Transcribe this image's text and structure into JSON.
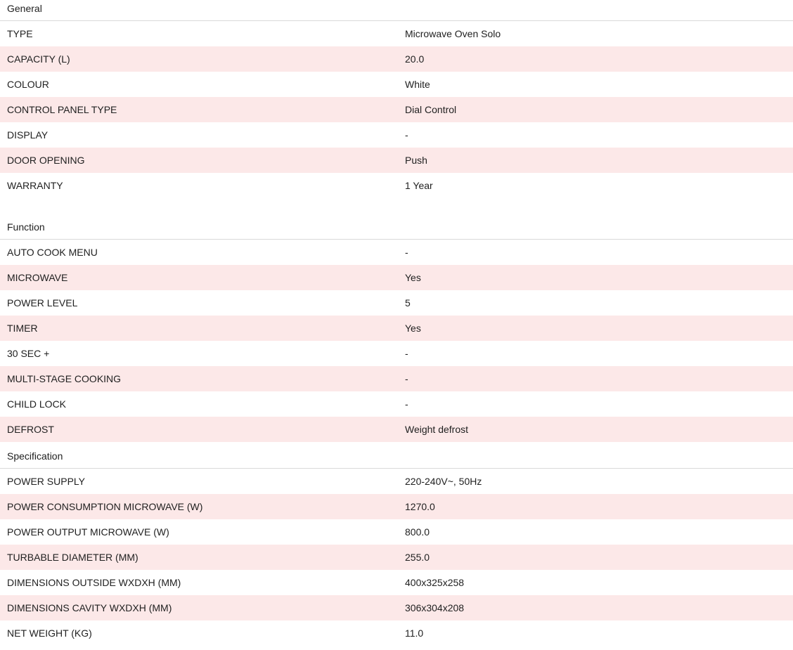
{
  "colors": {
    "stripe_pink": "#fce8e8",
    "header_rule_gray": "#d9d9d9",
    "text": "#212121",
    "background": "#ffffff"
  },
  "sections": [
    {
      "title": "General",
      "rows": [
        {
          "label": "TYPE",
          "value": "Microwave Oven Solo"
        },
        {
          "label": "CAPACITY (L)",
          "value": "20.0"
        },
        {
          "label": "COLOUR",
          "value": "White"
        },
        {
          "label": "CONTROL PANEL TYPE",
          "value": "Dial Control"
        },
        {
          "label": "DISPLAY",
          "value": "-"
        },
        {
          "label": "DOOR OPENING",
          "value": "Push"
        },
        {
          "label": "WARRANTY",
          "value": "1 Year"
        }
      ]
    },
    {
      "title": "Function",
      "rows": [
        {
          "label": "AUTO COOK MENU",
          "value": "-"
        },
        {
          "label": "MICROWAVE",
          "value": "Yes"
        },
        {
          "label": "POWER LEVEL",
          "value": "5"
        },
        {
          "label": "TIMER",
          "value": "Yes"
        },
        {
          "label": "30 SEC +",
          "value": "-"
        },
        {
          "label": "MULTI-STAGE COOKING",
          "value": "-"
        },
        {
          "label": "CHILD LOCK",
          "value": "-"
        },
        {
          "label": "DEFROST",
          "value": "Weight defrost"
        }
      ]
    },
    {
      "title": "Specification",
      "rows": [
        {
          "label": "POWER SUPPLY",
          "value": "220-240V~, 50Hz"
        },
        {
          "label": "POWER CONSUMPTION MICROWAVE (W)",
          "value": "1270.0"
        },
        {
          "label": "POWER OUTPUT MICROWAVE (W)",
          "value": "800.0"
        },
        {
          "label": "TURBABLE DIAMETER (MM)",
          "value": "255.0"
        },
        {
          "label": "DIMENSIONS OUTSIDE WXDXH (MM)",
          "value": "400x325x258"
        },
        {
          "label": "DIMENSIONS CAVITY WXDXH (MM)",
          "value": "306x304x208"
        },
        {
          "label": "NET WEIGHT (KG)",
          "value": "11.0"
        }
      ]
    }
  ]
}
